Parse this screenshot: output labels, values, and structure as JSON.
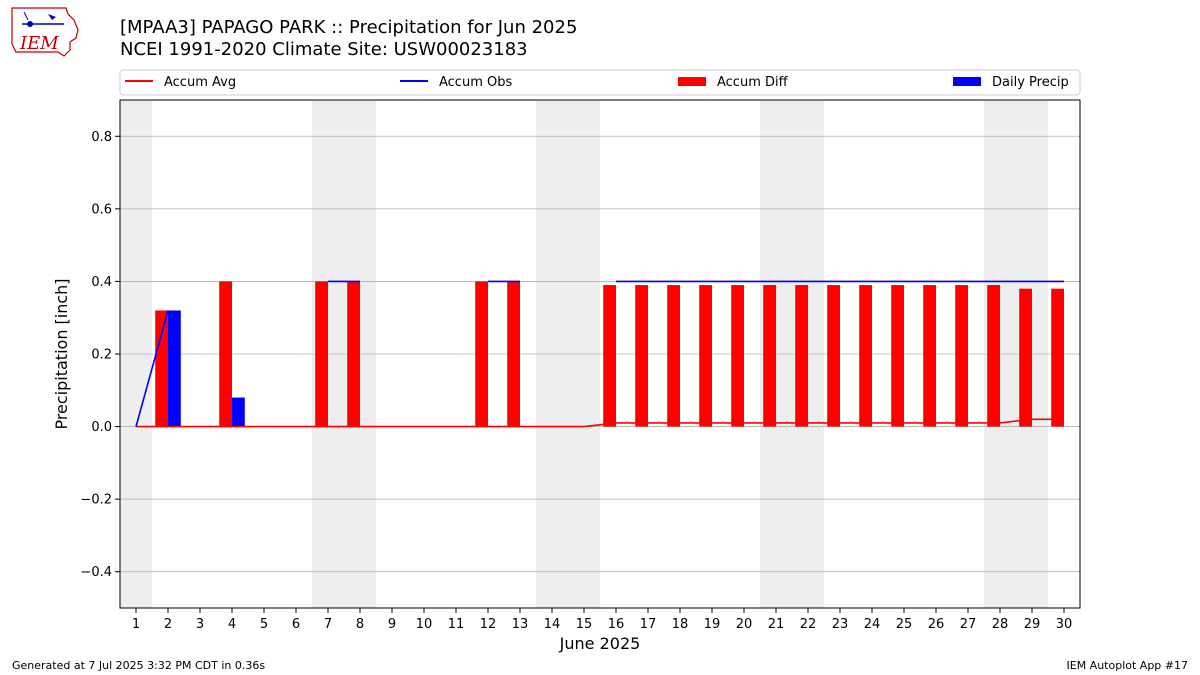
{
  "header": {
    "title": "[MPAA3] PAPAGO PARK :: Precipitation for Jun 2025",
    "subtitle": "NCEI 1991-2020 Climate Site: USW00023183",
    "logo_text": "IEM"
  },
  "footer": {
    "left": "Generated at 7 Jul 2025 3:32 PM CDT in 0.36s",
    "right": "IEM Autoplot App #17"
  },
  "colors": {
    "accum_avg": "#ff0000",
    "accum_obs": "#0000ff",
    "accum_diff": "#ff0000",
    "daily_precip": "#0000ff",
    "weekend_band": "#eeeeee",
    "grid": "#b0b0b0"
  },
  "chart_data": {
    "type": "bar",
    "xlabel": "June 2025",
    "ylabel": "Precipitation [inch]",
    "ylim": [
      -0.5,
      0.9
    ],
    "yticks": [
      -0.4,
      -0.2,
      0.0,
      0.2,
      0.4,
      0.6,
      0.8
    ],
    "ytick_labels": [
      "−0.4",
      "−0.2",
      "0.0",
      "0.2",
      "0.4",
      "0.6",
      "0.8"
    ],
    "grid": true,
    "legend_position": "top",
    "categories": [
      "1",
      "2",
      "3",
      "4",
      "5",
      "6",
      "7",
      "8",
      "9",
      "10",
      "11",
      "12",
      "13",
      "14",
      "15",
      "16",
      "17",
      "18",
      "19",
      "20",
      "21",
      "22",
      "23",
      "24",
      "25",
      "26",
      "27",
      "28",
      "29",
      "30"
    ],
    "weekend_days": [
      1,
      7,
      8,
      14,
      15,
      21,
      22,
      28,
      29
    ],
    "series": [
      {
        "name": "Accum Avg",
        "kind": "line",
        "values": [
          0,
          0,
          0,
          0,
          0,
          0,
          0,
          0,
          0,
          0,
          0,
          0,
          0,
          0,
          0,
          0.01,
          0.01,
          0.01,
          0.01,
          0.01,
          0.01,
          0.01,
          0.01,
          0.01,
          0.01,
          0.01,
          0.01,
          0.01,
          0.02,
          0.02
        ]
      },
      {
        "name": "Accum Obs",
        "kind": "line",
        "values": [
          0,
          0.32,
          null,
          null,
          null,
          null,
          0.4,
          0.4,
          null,
          null,
          null,
          0.4,
          0.4,
          null,
          null,
          0.4,
          0.4,
          0.4,
          0.4,
          0.4,
          0.4,
          0.4,
          0.4,
          0.4,
          0.4,
          0.4,
          0.4,
          0.4,
          0.4,
          0.4
        ]
      },
      {
        "name": "Accum Diff",
        "kind": "bar",
        "values": [
          0,
          0.32,
          0,
          0.4,
          0,
          0,
          0.4,
          0.4,
          0,
          0,
          0,
          0.4,
          0.4,
          0,
          0,
          0.39,
          0.39,
          0.39,
          0.39,
          0.39,
          0.39,
          0.39,
          0.39,
          0.39,
          0.39,
          0.39,
          0.39,
          0.39,
          0.38,
          0.38
        ]
      },
      {
        "name": "Daily Precip",
        "kind": "bar",
        "values": [
          0,
          0.32,
          0,
          0.08,
          0,
          0,
          0,
          0,
          0,
          0,
          0,
          0,
          0,
          0,
          0,
          0,
          0,
          0,
          0,
          0,
          0,
          0,
          0,
          0,
          0,
          0,
          0,
          0,
          0,
          0
        ]
      }
    ]
  }
}
